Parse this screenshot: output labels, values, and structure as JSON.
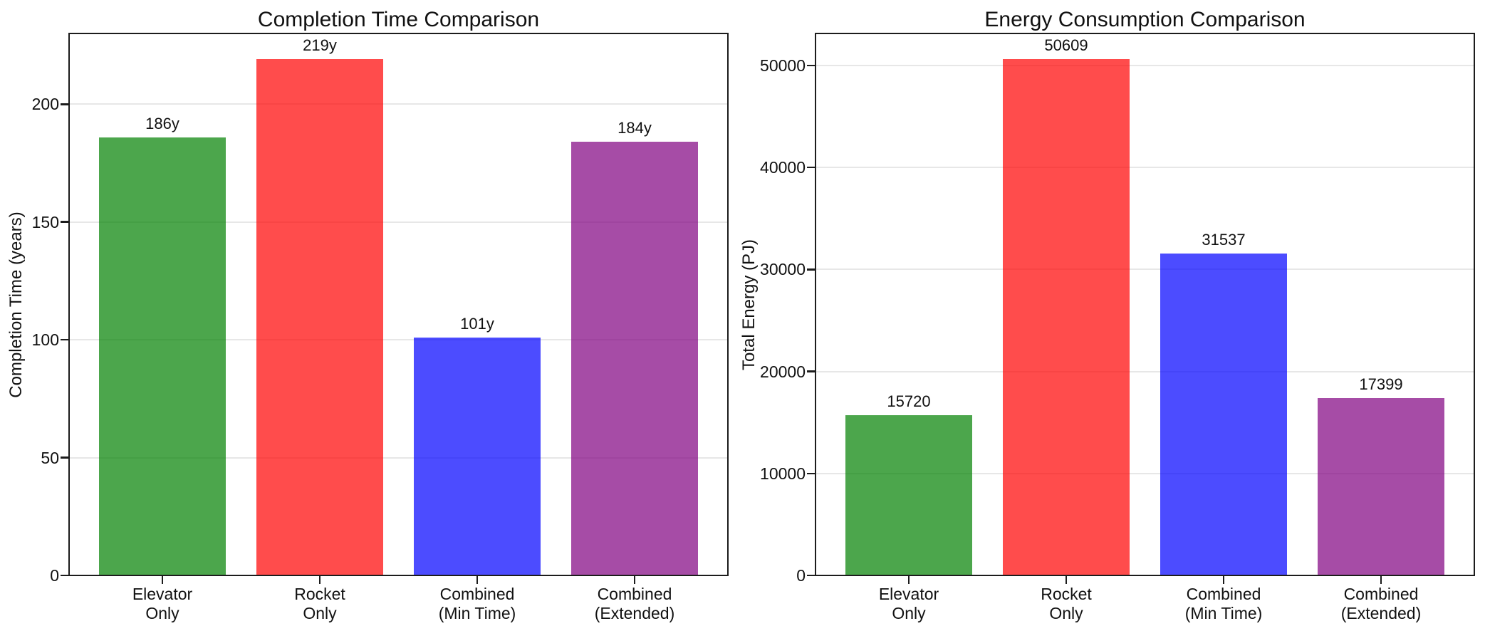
{
  "figure": {
    "background": "#ffffff",
    "spine_color": "#1c1c1c",
    "grid_color": "#e7e7e7",
    "text_color": "#111111"
  },
  "chart_data": [
    {
      "type": "bar",
      "title": "Completion Time Comparison",
      "xlabel": "",
      "ylabel": "Completion Time (years)",
      "categories": [
        "Elevator\nOnly",
        "Rocket\nOnly",
        "Combined\n(Min Time)",
        "Combined\n(Extended)"
      ],
      "values": [
        186,
        219,
        101,
        184
      ],
      "bar_labels": [
        "186y",
        "219y",
        "101y",
        "184y"
      ],
      "bar_colors": [
        "rgba(0,128,0,0.7)",
        "rgba(255,0,0,0.7)",
        "rgba(0,0,255,0.7)",
        "rgba(128,0,128,0.7)"
      ],
      "yticks": [
        0,
        50,
        100,
        150,
        200
      ],
      "ylim": [
        0,
        230
      ],
      "grid": "horizontal-y-only",
      "legend": "none"
    },
    {
      "type": "bar",
      "title": "Energy Consumption Comparison",
      "xlabel": "",
      "ylabel": "Total Energy (PJ)",
      "categories": [
        "Elevator\nOnly",
        "Rocket\nOnly",
        "Combined\n(Min Time)",
        "Combined\n(Extended)"
      ],
      "values": [
        15720,
        50609,
        31537,
        17399
      ],
      "bar_labels": [
        "15720",
        "50609",
        "31537",
        "17399"
      ],
      "bar_colors": [
        "rgba(0,128,0,0.7)",
        "rgba(255,0,0,0.7)",
        "rgba(0,0,255,0.7)",
        "rgba(128,0,128,0.7)"
      ],
      "yticks": [
        0,
        10000,
        20000,
        30000,
        40000,
        50000
      ],
      "ylim": [
        0,
        53140
      ],
      "grid": "horizontal-y-only",
      "legend": "none"
    }
  ]
}
